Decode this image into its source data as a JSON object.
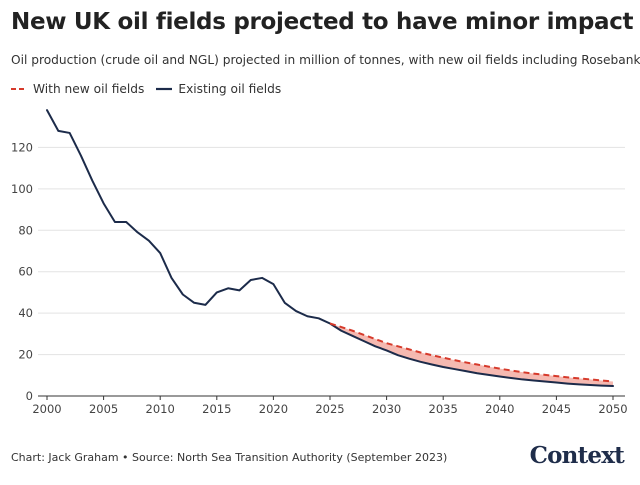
{
  "title": "New UK oil fields projected to have minor impact",
  "subtitle": "Oil production (crude oil and NGL) projected in million of tonnes, with new oil fields including Rosebank.",
  "legend": {
    "with_new": "With new oil fields",
    "existing": "Existing oil fields"
  },
  "footer": "Chart: Jack Graham • Source: North Sea Transition Authority (September 2023)",
  "logo": "Context",
  "colors": {
    "existing": "#1c2b4a",
    "with_new": "#d63a2b",
    "fill": "#f4b1a9",
    "grid": "#e3e3e3",
    "axis": "#333333"
  },
  "chart_data": {
    "type": "line",
    "title": "New UK oil fields projected to have minor impact",
    "xlabel": "",
    "ylabel": "",
    "xlim": [
      2000,
      2050
    ],
    "ylim": [
      0,
      140
    ],
    "xticks": [
      2000,
      2005,
      2010,
      2015,
      2020,
      2025,
      2030,
      2035,
      2040,
      2045,
      2050
    ],
    "yticks": [
      0,
      20,
      40,
      60,
      80,
      100,
      120
    ],
    "series": [
      {
        "name": "Existing oil fields",
        "x": [
          2000,
          2001,
          2002,
          2003,
          2004,
          2005,
          2006,
          2007,
          2008,
          2009,
          2010,
          2011,
          2012,
          2013,
          2014,
          2015,
          2016,
          2017,
          2018,
          2019,
          2020,
          2021,
          2022,
          2023,
          2024,
          2025,
          2026,
          2027,
          2028,
          2029,
          2030,
          2031,
          2032,
          2033,
          2034,
          2035,
          2036,
          2037,
          2038,
          2039,
          2040,
          2041,
          2042,
          2043,
          2044,
          2045,
          2046,
          2047,
          2048,
          2049,
          2050
        ],
        "values": [
          138,
          128,
          127,
          116,
          104,
          93,
          84,
          84,
          79,
          75,
          69,
          57,
          49,
          45,
          44,
          50,
          52,
          51,
          56,
          57,
          54,
          45,
          41,
          38.5,
          37.5,
          35,
          31.5,
          29,
          26.5,
          24,
          22,
          19.7,
          18,
          16.5,
          15.2,
          14,
          13,
          12,
          11,
          10.2,
          9.4,
          8.7,
          8,
          7.5,
          7,
          6.5,
          6,
          5.6,
          5.3,
          5,
          4.8
        ]
      },
      {
        "name": "With new oil fields",
        "x": [
          2025,
          2026,
          2027,
          2028,
          2029,
          2030,
          2031,
          2032,
          2033,
          2034,
          2035,
          2036,
          2037,
          2038,
          2039,
          2040,
          2041,
          2042,
          2043,
          2044,
          2045,
          2046,
          2047,
          2048,
          2049,
          2050
        ],
        "values": [
          35,
          33.3,
          31.5,
          29.5,
          27.5,
          25.5,
          24,
          22.5,
          21,
          19.7,
          18.5,
          17.3,
          16.2,
          15.2,
          14.2,
          13.2,
          12.3,
          11.5,
          10.8,
          10.2,
          9.6,
          9,
          8.5,
          8,
          7.5,
          7
        ]
      }
    ],
    "shaded_area": "Gap between 'With new oil fields' and 'Existing oil fields' from 2025 to 2050",
    "legend_position": "top-left"
  }
}
